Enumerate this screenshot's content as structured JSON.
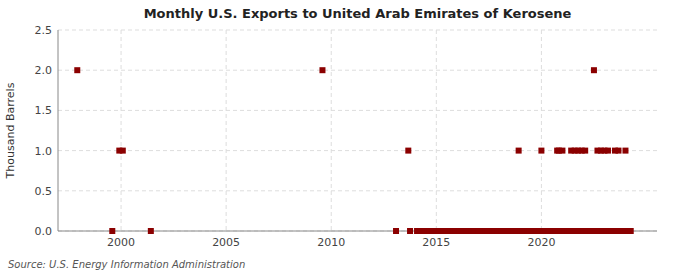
{
  "chart_data": {
    "type": "scatter",
    "title": "Monthly U.S. Exports to United Arab Emirates of Kerosene",
    "y_label": "Thousand Barrels",
    "source": "Source: U.S. Energy Information Administration",
    "color": "#8b0000",
    "marker": "square",
    "grid": true,
    "xlim": [
      1997.0,
      2025.5
    ],
    "xticks": [
      2000,
      2005,
      2010,
      2015,
      2020
    ],
    "ylim": [
      0,
      2.5
    ],
    "yticks": [
      {
        "value": 0.0,
        "label": "0.0"
      },
      0.5,
      {
        "value": 1.0,
        "label": "1.0"
      },
      1.5,
      {
        "value": 2.0,
        "label": "2.0"
      },
      2.5
    ],
    "x": [
      1997.917,
      1999.583,
      1999.917,
      2000.083,
      2001.417,
      2009.583,
      2013.083,
      2013.667,
      2013.75,
      2014.083,
      2014.167,
      2014.25,
      2014.333,
      2014.417,
      2014.5,
      2014.583,
      2014.667,
      2014.75,
      2014.833,
      2014.917,
      2015.0,
      2015.083,
      2015.167,
      2015.25,
      2015.333,
      2015.417,
      2015.5,
      2015.583,
      2015.667,
      2015.75,
      2015.833,
      2015.917,
      2016.0,
      2016.083,
      2016.167,
      2016.25,
      2016.333,
      2016.417,
      2016.5,
      2016.583,
      2016.667,
      2016.75,
      2016.833,
      2016.917,
      2017.0,
      2017.083,
      2017.167,
      2017.25,
      2017.333,
      2017.417,
      2017.5,
      2017.583,
      2017.667,
      2017.75,
      2017.833,
      2017.917,
      2018.0,
      2018.083,
      2018.167,
      2018.25,
      2018.333,
      2018.417,
      2018.5,
      2018.583,
      2018.667,
      2018.75,
      2018.833,
      2018.917,
      2019.0,
      2019.083,
      2019.167,
      2019.25,
      2019.333,
      2019.417,
      2019.5,
      2019.583,
      2019.667,
      2019.75,
      2019.833,
      2019.917,
      2020.0,
      2020.083,
      2020.167,
      2020.25,
      2020.333,
      2020.417,
      2020.5,
      2020.583,
      2020.667,
      2020.75,
      2020.833,
      2020.917,
      2021.0,
      2021.083,
      2021.167,
      2021.25,
      2021.333,
      2021.417,
      2021.5,
      2021.583,
      2021.667,
      2021.75,
      2021.833,
      2021.917,
      2022.0,
      2022.083,
      2022.167,
      2022.25,
      2022.333,
      2022.417,
      2022.5,
      2022.583,
      2022.667,
      2022.75,
      2022.833,
      2022.917,
      2023.0,
      2023.083,
      2023.167,
      2023.25,
      2023.333,
      2023.417,
      2023.5,
      2023.583,
      2023.667,
      2023.75,
      2023.833,
      2023.917,
      2024.0,
      2024.083,
      2024.167,
      2024.25
    ],
    "values": [
      2.0,
      0.0,
      1.0,
      1.0,
      0.0,
      2.0,
      0.0,
      1.0,
      0.0,
      0.0,
      0.0,
      0.0,
      0.0,
      0.0,
      0.0,
      0.0,
      0.0,
      0.0,
      0.0,
      0.0,
      0.0,
      0.0,
      0.0,
      0.0,
      0.0,
      0.0,
      0.0,
      0.0,
      0.0,
      0.0,
      0.0,
      0.0,
      0.0,
      0.0,
      0.0,
      0.0,
      0.0,
      0.0,
      0.0,
      0.0,
      0.0,
      0.0,
      0.0,
      0.0,
      0.0,
      0.0,
      0.0,
      0.0,
      0.0,
      0.0,
      0.0,
      0.0,
      0.0,
      0.0,
      0.0,
      0.0,
      0.0,
      0.0,
      0.0,
      0.0,
      0.0,
      0.0,
      0.0,
      0.0,
      0.0,
      0.0,
      0.0,
      1.0,
      0.0,
      0.0,
      0.0,
      0.0,
      0.0,
      0.0,
      0.0,
      0.0,
      0.0,
      0.0,
      0.0,
      0.0,
      1.0,
      0.0,
      0.0,
      0.0,
      0.0,
      0.0,
      0.0,
      0.0,
      0.0,
      1.0,
      1.0,
      0.0,
      1.0,
      0.0,
      0.0,
      0.0,
      0.0,
      1.0,
      0.0,
      1.0,
      0.0,
      1.0,
      0.0,
      1.0,
      0.0,
      1.0,
      0.0,
      0.0,
      0.0,
      0.0,
      2.0,
      0.0,
      1.0,
      0.0,
      1.0,
      0.0,
      1.0,
      0.0,
      1.0,
      0.0,
      0.0,
      0.0,
      1.0,
      0.0,
      1.0,
      0.0,
      0.0,
      0.0,
      1.0,
      0.0,
      0.0,
      0.0
    ]
  }
}
